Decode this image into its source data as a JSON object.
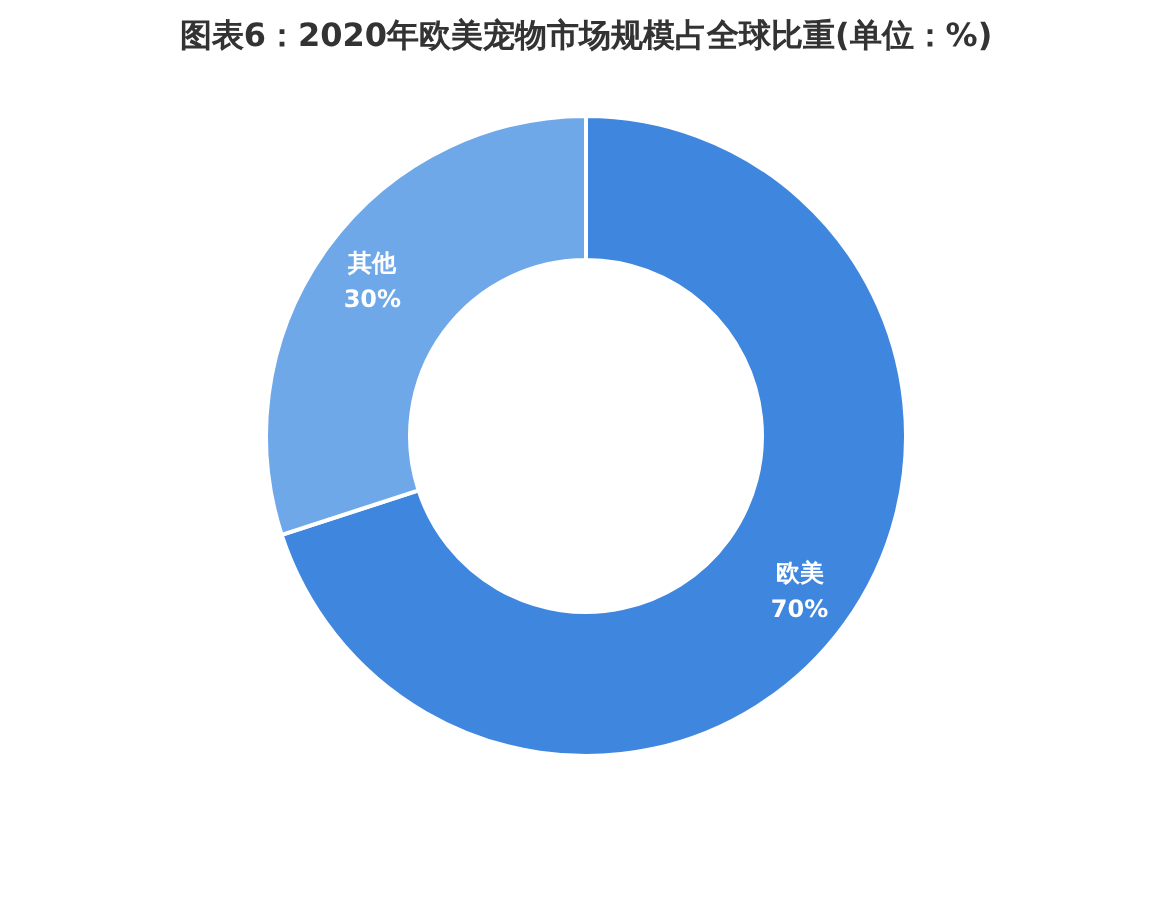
{
  "chart_data": {
    "type": "donut",
    "title": "图表6：2020年欧美宠物市场规模占全球比重(单位：%)",
    "categories": [
      "欧美",
      "其他"
    ],
    "values": [
      70,
      30
    ],
    "colors": [
      "#3f86df",
      "#6fa8e9"
    ],
    "value_labels": [
      "70%",
      "30%"
    ]
  }
}
